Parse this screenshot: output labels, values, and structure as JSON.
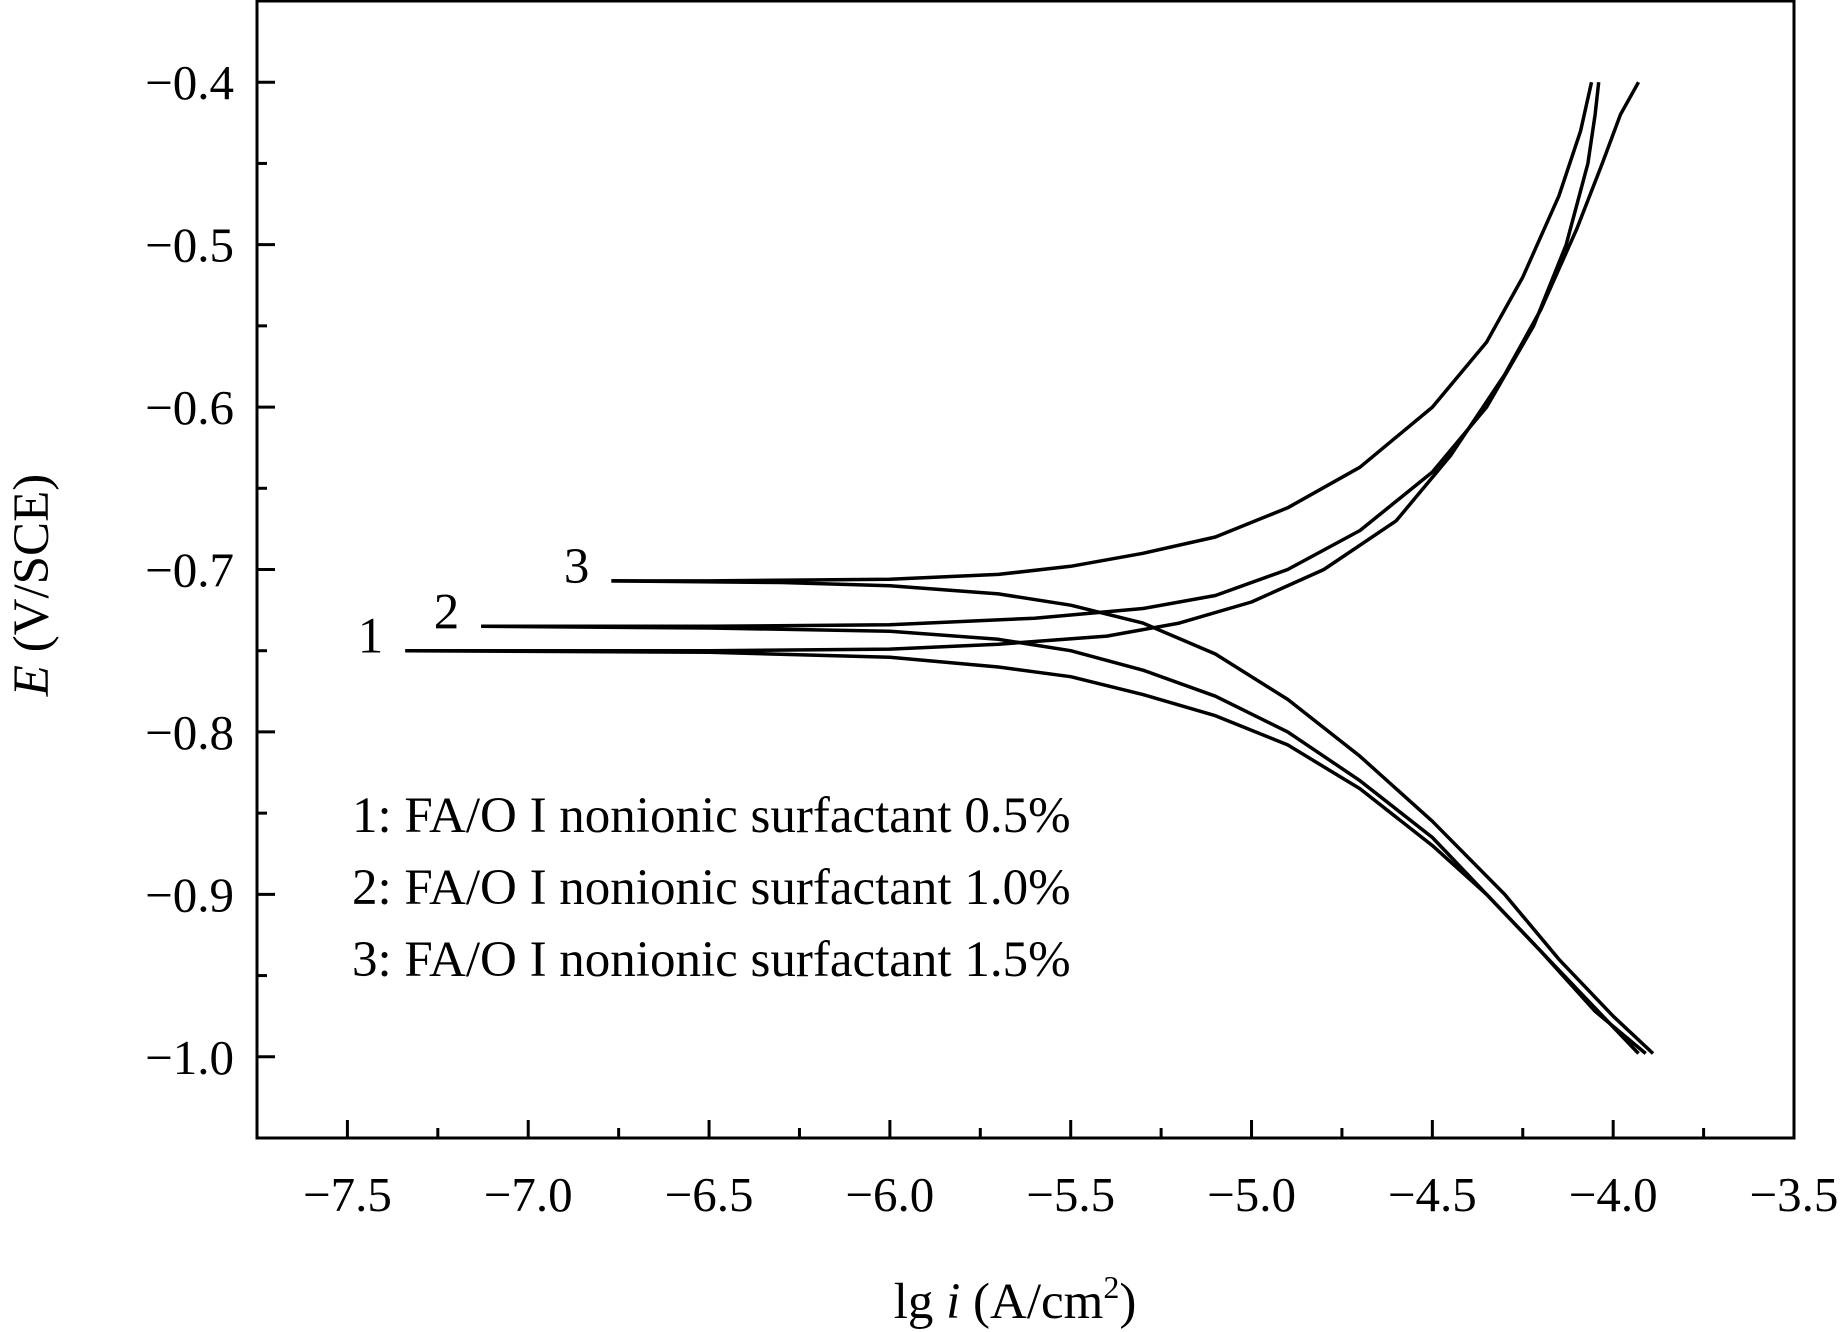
{
  "chart_data": {
    "type": "line",
    "xlabel": {
      "prefix": "lg ",
      "italic": "i",
      "unit": " (A/cm",
      "sup": "2",
      "close": ")"
    },
    "ylabel": {
      "italic": "E",
      "unit": " (V/SCE)"
    },
    "xlim": [
      -7.75,
      -3.5
    ],
    "ylim": [
      -1.05,
      -0.35
    ],
    "xticks": [
      -7.5,
      -7.0,
      -6.5,
      -6.0,
      -5.5,
      -5.0,
      -4.5,
      -4.0,
      -3.5
    ],
    "xtick_labels": [
      "−7.5",
      "−7.0",
      "−6.5",
      "−6.0",
      "−5.5",
      "−5.0",
      "−4.5",
      "−4.0",
      "−3.5"
    ],
    "yticks": [
      -0.4,
      -0.5,
      -0.6,
      -0.7,
      -0.8,
      -0.9,
      -1.0
    ],
    "ytick_labels": [
      "−0.4",
      "−0.5",
      "−0.6",
      "−0.7",
      "−0.8",
      "−0.9",
      "−1.0"
    ],
    "grid": false,
    "legend_position": "bottom-left",
    "legend": [
      "1: FA/O I nonionic surfactant 0.5%",
      "2: FA/O I nonionic surfactant 1.0%",
      "3: FA/O I nonionic surfactant 1.5%"
    ],
    "series": [
      {
        "curve_label": "1",
        "anodic": [
          [
            -7.34,
            -0.75
          ],
          [
            -7.0,
            -0.75
          ],
          [
            -6.5,
            -0.75
          ],
          [
            -6.0,
            -0.749
          ],
          [
            -5.7,
            -0.746
          ],
          [
            -5.4,
            -0.741
          ],
          [
            -5.2,
            -0.733
          ],
          [
            -5.0,
            -0.72
          ],
          [
            -4.8,
            -0.7
          ],
          [
            -4.6,
            -0.67
          ],
          [
            -4.45,
            -0.63
          ],
          [
            -4.3,
            -0.58
          ],
          [
            -4.2,
            -0.54
          ],
          [
            -4.1,
            -0.49
          ],
          [
            -4.03,
            -0.45
          ],
          [
            -3.98,
            -0.42
          ],
          [
            -3.93,
            -0.4
          ]
        ],
        "cathodic": [
          [
            -7.34,
            -0.75
          ],
          [
            -6.5,
            -0.751
          ],
          [
            -6.0,
            -0.754
          ],
          [
            -5.7,
            -0.76
          ],
          [
            -5.5,
            -0.766
          ],
          [
            -5.3,
            -0.777
          ],
          [
            -5.1,
            -0.79
          ],
          [
            -4.9,
            -0.808
          ],
          [
            -4.7,
            -0.835
          ],
          [
            -4.5,
            -0.87
          ],
          [
            -4.35,
            -0.9
          ],
          [
            -4.2,
            -0.935
          ],
          [
            -4.05,
            -0.97
          ],
          [
            -3.93,
            -0.998
          ]
        ]
      },
      {
        "curve_label": "2",
        "anodic": [
          [
            -7.13,
            -0.735
          ],
          [
            -6.5,
            -0.735
          ],
          [
            -6.0,
            -0.734
          ],
          [
            -5.6,
            -0.73
          ],
          [
            -5.3,
            -0.724
          ],
          [
            -5.1,
            -0.716
          ],
          [
            -4.9,
            -0.7
          ],
          [
            -4.7,
            -0.676
          ],
          [
            -4.5,
            -0.64
          ],
          [
            -4.35,
            -0.6
          ],
          [
            -4.22,
            -0.55
          ],
          [
            -4.13,
            -0.5
          ],
          [
            -4.07,
            -0.45
          ],
          [
            -4.05,
            -0.42
          ],
          [
            -4.04,
            -0.4
          ]
        ],
        "cathodic": [
          [
            -7.13,
            -0.735
          ],
          [
            -6.5,
            -0.736
          ],
          [
            -6.0,
            -0.738
          ],
          [
            -5.7,
            -0.743
          ],
          [
            -5.5,
            -0.75
          ],
          [
            -5.3,
            -0.762
          ],
          [
            -5.1,
            -0.778
          ],
          [
            -4.9,
            -0.8
          ],
          [
            -4.7,
            -0.83
          ],
          [
            -4.5,
            -0.865
          ],
          [
            -4.35,
            -0.9
          ],
          [
            -4.2,
            -0.935
          ],
          [
            -4.05,
            -0.972
          ],
          [
            -3.91,
            -0.998
          ]
        ]
      },
      {
        "curve_label": "3",
        "anodic": [
          [
            -6.77,
            -0.707
          ],
          [
            -6.5,
            -0.707
          ],
          [
            -6.0,
            -0.706
          ],
          [
            -5.7,
            -0.703
          ],
          [
            -5.5,
            -0.698
          ],
          [
            -5.3,
            -0.69
          ],
          [
            -5.1,
            -0.68
          ],
          [
            -4.9,
            -0.662
          ],
          [
            -4.7,
            -0.637
          ],
          [
            -4.5,
            -0.6
          ],
          [
            -4.35,
            -0.56
          ],
          [
            -4.25,
            -0.52
          ],
          [
            -4.15,
            -0.47
          ],
          [
            -4.09,
            -0.43
          ],
          [
            -4.06,
            -0.4
          ]
        ],
        "cathodic": [
          [
            -6.77,
            -0.707
          ],
          [
            -6.3,
            -0.708
          ],
          [
            -6.0,
            -0.71
          ],
          [
            -5.7,
            -0.715
          ],
          [
            -5.5,
            -0.722
          ],
          [
            -5.3,
            -0.733
          ],
          [
            -5.1,
            -0.752
          ],
          [
            -4.9,
            -0.78
          ],
          [
            -4.7,
            -0.815
          ],
          [
            -4.5,
            -0.855
          ],
          [
            -4.3,
            -0.9
          ],
          [
            -4.15,
            -0.94
          ],
          [
            -4.0,
            -0.975
          ],
          [
            -3.89,
            -0.998
          ]
        ]
      }
    ]
  }
}
